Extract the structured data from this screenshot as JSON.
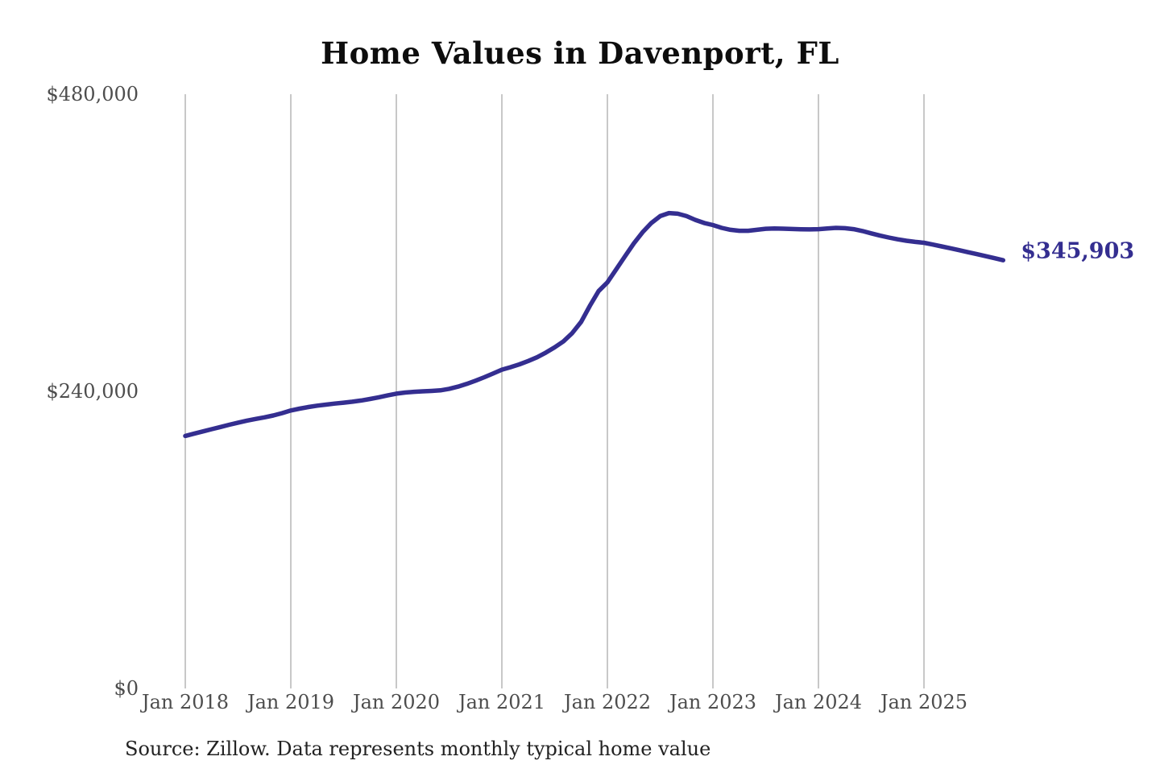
{
  "chart_data": {
    "type": "line",
    "title": "Home Values in Davenport, FL",
    "source": "Source: Zillow. Data represents monthly typical home value",
    "end_label": "$345,903",
    "latest_value": 345903,
    "line_color": "#342e90",
    "grid_color": "#c8c8c8",
    "axis_label_color": "#4d4d4d",
    "grid": "vertical-only",
    "legend": "none",
    "ylim": [
      0,
      480000
    ],
    "x_start": "Jan 2018",
    "x_end": "Oct 2025",
    "y_ticks": [
      {
        "label": "$0",
        "value": 0
      },
      {
        "label": "$240,000",
        "value": 240000
      },
      {
        "label": "$480,000",
        "value": 480000
      }
    ],
    "x_ticks": [
      {
        "label": "Jan 2018",
        "month": 0
      },
      {
        "label": "Jan 2019",
        "month": 12
      },
      {
        "label": "Jan 2020",
        "month": 24
      },
      {
        "label": "Jan 2021",
        "month": 36
      },
      {
        "label": "Jan 2022",
        "month": 48
      },
      {
        "label": "Jan 2023",
        "month": 60
      },
      {
        "label": "Jan 2024",
        "month": 72
      },
      {
        "label": "Jan 2025",
        "month": 84
      }
    ],
    "series": [
      {
        "name": "Monthly typical home value",
        "start_month": "2018-01",
        "values": [
          204000,
          205800,
          207600,
          209400,
          211200,
          213000,
          214700,
          216300,
          217700,
          219000,
          220500,
          222400,
          224500,
          226000,
          227300,
          228400,
          229300,
          230100,
          230800,
          231600,
          232600,
          233800,
          235200,
          236700,
          238100,
          239000,
          239600,
          240000,
          240300,
          240800,
          242000,
          243800,
          246000,
          248600,
          251400,
          254400,
          257500,
          259500,
          261800,
          264500,
          267500,
          271300,
          275500,
          280300,
          287000,
          296000,
          309000,
          321000,
          328000,
          338500,
          349000,
          359500,
          368500,
          376000,
          381500,
          384000,
          383500,
          381500,
          378500,
          376000,
          374300,
          372000,
          370500,
          369700,
          369700,
          370500,
          371300,
          371600,
          371400,
          371100,
          370900,
          370800,
          371000,
          371600,
          372000,
          371800,
          371000,
          369500,
          367600,
          365800,
          364200,
          362800,
          361600,
          360700,
          360000,
          358600,
          357100,
          355600,
          354000,
          352400,
          350800,
          349200,
          347600,
          345903
        ]
      }
    ]
  }
}
